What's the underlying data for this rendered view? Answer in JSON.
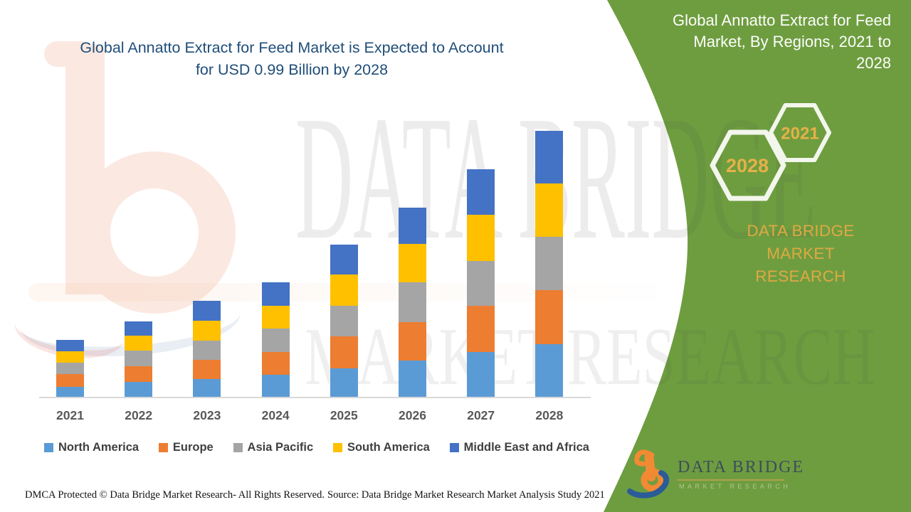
{
  "colors": {
    "panel_green": "#6e9d40",
    "headline_blue": "#1f4e79",
    "gold": "#dfa942",
    "hex_year_gold": "#e5b148",
    "hex_stroke": "#f3f6ec",
    "axis_gray": "#d9d9d9",
    "year_label_gray": "#595959",
    "legend_text_gray": "#404040"
  },
  "header": {
    "title_line1": "Global Annatto Extract for Feed Market is Expected to Account",
    "title_line2": "for USD 0.99 Billion by 2028"
  },
  "chart_data": {
    "type": "bar",
    "stacked": true,
    "title": "Global Annatto Extract for Feed Market is Expected to Account for USD 0.99 Billion by 2028",
    "unit": "USD Billion",
    "xlabel": "",
    "ylabel": "",
    "ylim": [
      0,
      1.0
    ],
    "grid": false,
    "legend_position": "bottom",
    "categories": [
      "2021",
      "2022",
      "2023",
      "2024",
      "2025",
      "2026",
      "2027",
      "2028"
    ],
    "series": [
      {
        "name": "North America",
        "color": "#5b9bd5",
        "values": [
          0.038,
          0.056,
          0.066,
          0.082,
          0.107,
          0.136,
          0.167,
          0.197
        ]
      },
      {
        "name": "Europe",
        "color": "#ed7d31",
        "values": [
          0.048,
          0.058,
          0.072,
          0.085,
          0.118,
          0.141,
          0.171,
          0.2
        ]
      },
      {
        "name": "Asia Pacific",
        "color": "#a5a5a5",
        "values": [
          0.04,
          0.058,
          0.071,
          0.087,
          0.113,
          0.148,
          0.168,
          0.198
        ]
      },
      {
        "name": "South America",
        "color": "#ffc000",
        "values": [
          0.043,
          0.055,
          0.075,
          0.086,
          0.116,
          0.143,
          0.172,
          0.198
        ]
      },
      {
        "name": "Middle East and Africa",
        "color": "#4472c4",
        "values": [
          0.042,
          0.054,
          0.074,
          0.087,
          0.113,
          0.137,
          0.168,
          0.197
        ]
      }
    ],
    "totals": [
      0.211,
      0.281,
      0.358,
      0.427,
      0.567,
      0.705,
      0.846,
      0.99
    ]
  },
  "right_panel": {
    "title_lines": [
      "Global Annatto Extract for Feed",
      "Market, By Regions, 2021 to",
      "2028"
    ],
    "hexagons": {
      "back_label": "2028",
      "front_label": "2021"
    },
    "brand_lines": [
      "DATA BRIDGE MARKET",
      "RESEARCH"
    ],
    "logo": {
      "title": "DATA BRIDGE",
      "subtitle": "MARKET RESEARCH"
    }
  },
  "watermark": {
    "row1": "DATA BRIDGE",
    "row2": "MARKET RESEARCH"
  },
  "footer": {
    "dmca": "DMCA Protected © Data Bridge Market Research- All Rights Reserved.",
    "source": "Source: Data Bridge Market Research Market Analysis Study 2021"
  }
}
